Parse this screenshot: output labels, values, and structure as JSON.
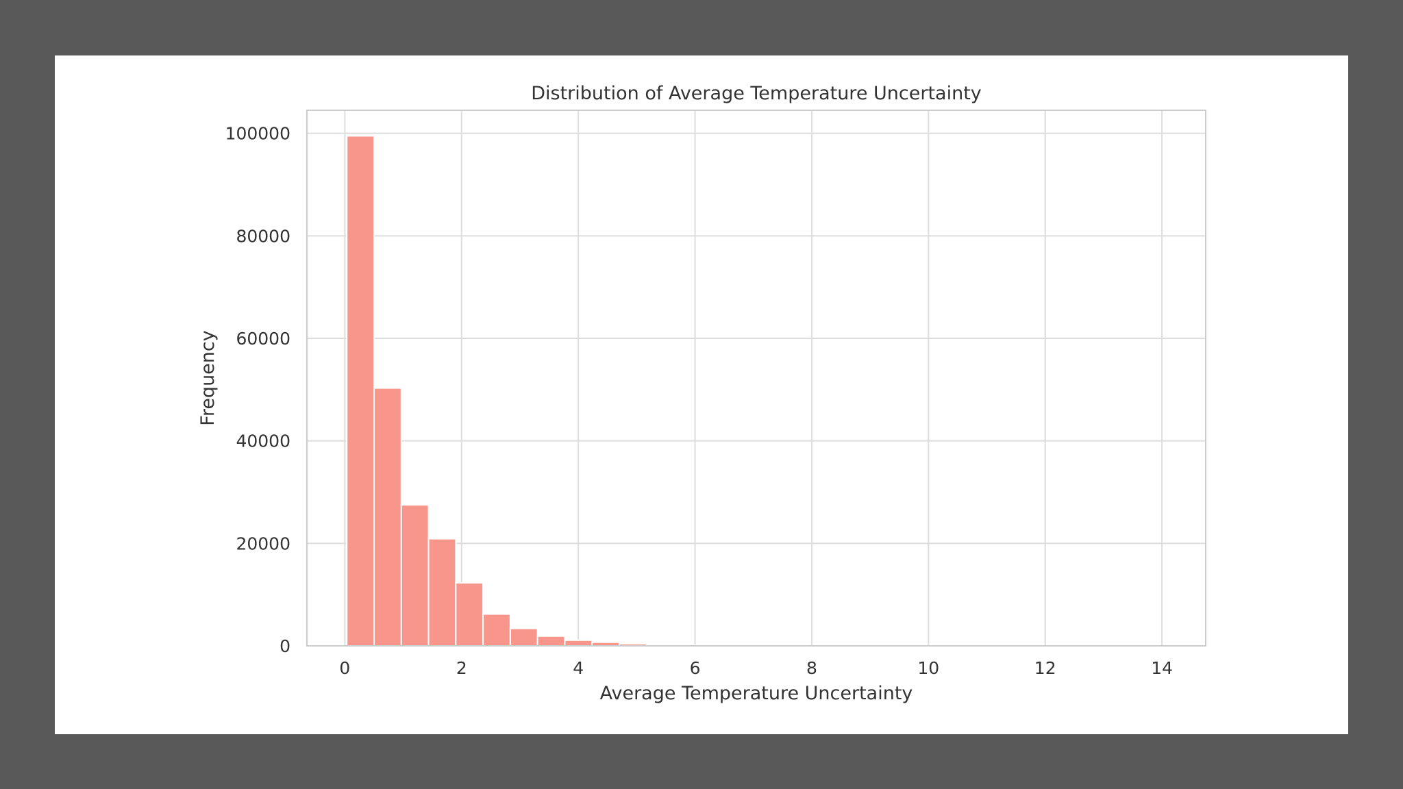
{
  "chart_data": {
    "type": "bar",
    "title": "Distribution of Average Temperature Uncertainty",
    "xlabel": "Average Temperature Uncertainty",
    "ylabel": "Frequency",
    "xlim": [
      -0.65,
      14.75
    ],
    "ylim": [
      0,
      104500
    ],
    "xticks": [
      0,
      2,
      4,
      6,
      8,
      10,
      12,
      14
    ],
    "yticks": [
      0,
      20000,
      40000,
      60000,
      80000,
      100000
    ],
    "grid": true,
    "legend": "none",
    "bar_color": "#f8968b",
    "bin_width": 0.4668,
    "bin_start": 0.034,
    "values": [
      99500,
      50300,
      27500,
      20900,
      12300,
      6200,
      3400,
      1900,
      1100,
      700,
      400,
      250,
      150,
      100,
      70,
      50,
      30,
      20,
      15,
      10,
      8,
      6,
      5,
      4,
      3,
      2,
      2,
      1,
      1,
      1
    ]
  }
}
